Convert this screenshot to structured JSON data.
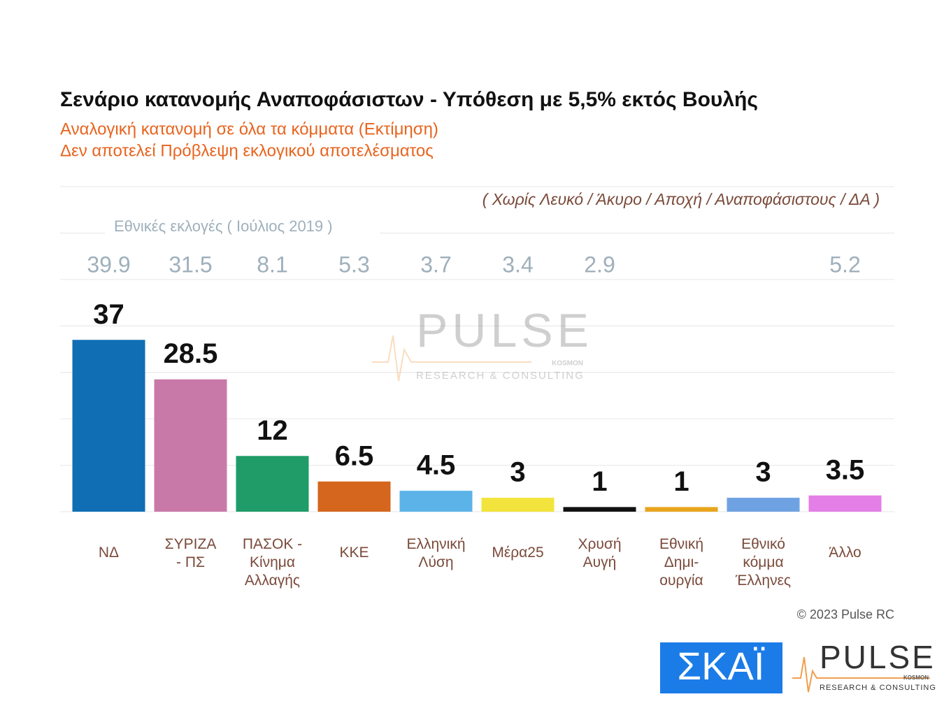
{
  "chart_data": {
    "type": "bar",
    "title": "Σενάριο κατανομής Αναποφάσιστων - Υπόθεση με 5,5% εκτός Βουλής",
    "subtitle": [
      "Αναλογική κατανομή σε όλα τα κόμματα   (Εκτίμηση)",
      "Δεν αποτελεί Πρόβλεψη εκλογικού αποτελέσματος"
    ],
    "note": "( Χωρίς Λευκό / Άκυρο / Αποχή / Αναποφάσιστους / ΔΑ )",
    "reference_label": "Εθνικές εκλογές  ( Ιούλιος 2019 )",
    "categories": [
      "ΝΔ",
      "ΣΥΡΙΖΑ\n- ΠΣ",
      "ΠΑΣΟΚ -\nΚίνημα\nΑλλαγής",
      "ΚΚΕ",
      "Ελληνική\nΛύση",
      "Μέρα25",
      "Χρυσή\nΑυγή",
      "Εθνική\nΔημι-\nουργία",
      "Εθνικό\nκόμμα\nΈλληνες",
      "Άλλο"
    ],
    "values": [
      37,
      28.5,
      12,
      6.5,
      4.5,
      3,
      1,
      1,
      3,
      3.5
    ],
    "colors": [
      "#0f6eb4",
      "#c979a8",
      "#1f9c68",
      "#d5661e",
      "#5bb3e8",
      "#f2e43c",
      "#111111",
      "#e7a51d",
      "#6fa2e2",
      "#e47fe7"
    ],
    "reference_values": [
      39.9,
      31.5,
      8.1,
      5.3,
      3.7,
      3.4,
      2.9,
      null,
      null,
      5.2
    ],
    "ylim": [
      0,
      70
    ],
    "grid": true,
    "copyright": "© 2023 Pulse RC",
    "watermark": {
      "name": "PULSE",
      "tagline": "RESEARCH & CONSULTING",
      "sub": "KOSMON"
    },
    "logos": {
      "broadcaster": "ΣΚΑΪ",
      "pollster": "PULSE",
      "pollster_tagline": "RESEARCH & CONSULTING",
      "pollster_sub": "KOSMON"
    }
  }
}
